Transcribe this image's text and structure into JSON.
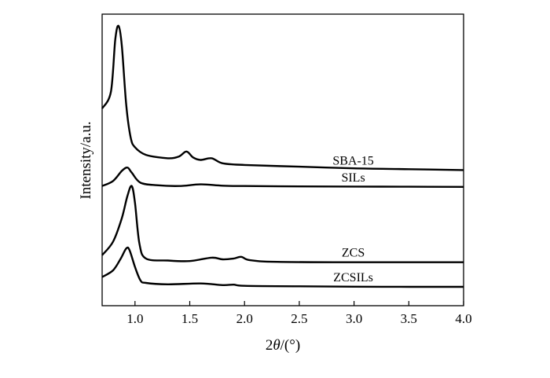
{
  "chart_data": {
    "type": "line",
    "xlabel_italic": "θ",
    "xlabel_prefix": "2",
    "xlabel_suffix": "/(°)",
    "ylabel": "Intensity/a.u.",
    "xlim": [
      0.7,
      4.0
    ],
    "x_ticks": [
      "1.0",
      "1.5",
      "2.0",
      "2.5",
      "3.0",
      "3.5",
      "4.0"
    ],
    "y_ticks_shown": false,
    "grid": false,
    "legend": "none (series labels placed next to each curve)",
    "series": [
      {
        "name": "SBA-15",
        "x": [
          0.7,
          0.78,
          0.82,
          0.85,
          0.88,
          0.92,
          0.96,
          1.0,
          1.1,
          1.3,
          1.4,
          1.47,
          1.53,
          1.6,
          1.7,
          1.8,
          2.0,
          2.5,
          3.0,
          3.5,
          4.0
        ],
        "y": [
          8.5,
          9.5,
          12.6,
          13.4,
          12.2,
          8.7,
          6.8,
          6.2,
          5.75,
          5.55,
          5.65,
          5.95,
          5.6,
          5.45,
          5.55,
          5.25,
          5.15,
          5.05,
          4.95,
          4.9,
          4.85
        ]
      },
      {
        "name": "SILs",
        "x": [
          0.7,
          0.8,
          0.88,
          0.93,
          0.97,
          1.05,
          1.2,
          1.4,
          1.6,
          1.8,
          2.0,
          2.5,
          3.0,
          3.5,
          4.0
        ],
        "y": [
          3.9,
          4.2,
          4.8,
          5.0,
          4.7,
          4.1,
          3.95,
          3.9,
          4.0,
          3.92,
          3.9,
          3.88,
          3.87,
          3.86,
          3.85
        ]
      },
      {
        "name": "ZCS",
        "x": [
          0.7,
          0.8,
          0.88,
          0.93,
          0.97,
          1.0,
          1.04,
          1.1,
          1.3,
          1.5,
          1.7,
          1.8,
          1.9,
          1.97,
          2.05,
          2.3,
          3.0,
          3.5,
          4.0
        ],
        "y": [
          -0.2,
          0.6,
          2.0,
          3.3,
          3.9,
          2.9,
          0.5,
          -0.4,
          -0.52,
          -0.55,
          -0.35,
          -0.45,
          -0.4,
          -0.3,
          -0.5,
          -0.6,
          -0.62,
          -0.62,
          -0.62
        ]
      },
      {
        "name": "ZCSILs",
        "x": [
          0.7,
          0.8,
          0.87,
          0.92,
          0.95,
          1.0,
          1.05,
          1.1,
          1.3,
          1.6,
          1.8,
          1.9,
          2.0,
          2.5,
          3.0,
          3.5,
          4.0
        ],
        "y": [
          -1.5,
          -1.1,
          -0.4,
          0.2,
          0.1,
          -0.9,
          -1.7,
          -1.85,
          -1.93,
          -1.88,
          -1.98,
          -1.95,
          -2.02,
          -2.05,
          -2.07,
          -2.08,
          -2.08
        ]
      }
    ]
  }
}
